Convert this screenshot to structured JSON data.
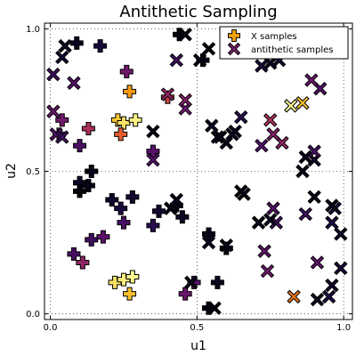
{
  "chart_data": {
    "type": "scatter",
    "title": "Antithetic Sampling",
    "xlabel": "u1",
    "ylabel": "u2",
    "xlim": [
      -0.02,
      1.03
    ],
    "ylim": [
      -0.02,
      1.02
    ],
    "xticks": [
      0.0,
      0.5,
      1.0
    ],
    "xtick_labels": [
      "0.0",
      "0.5",
      "1.0"
    ],
    "yticks": [
      0.0,
      0.5,
      1.0
    ],
    "ytick_labels": [
      "0.0",
      "0.5",
      "1.0"
    ],
    "grid": true,
    "legend_position": "top-right",
    "marker": "cross",
    "colormap": "inferno",
    "series": [
      {
        "name": "X samples",
        "color_rule": "colored by sample index (inferno colormap)",
        "points": [
          {
            "x": 0.17,
            "y": 0.94,
            "c": 0.1
          },
          {
            "x": 0.44,
            "y": 0.98,
            "c": 0.02
          },
          {
            "x": 0.09,
            "y": 0.95,
            "c": 0.05
          },
          {
            "x": 0.52,
            "y": 0.89,
            "c": 0.04
          },
          {
            "x": 0.26,
            "y": 0.85,
            "c": 0.32
          },
          {
            "x": 0.27,
            "y": 0.78,
            "c": 0.78
          },
          {
            "x": 0.4,
            "y": 0.76,
            "c": 0.55
          },
          {
            "x": 0.23,
            "y": 0.68,
            "c": 0.88
          },
          {
            "x": 0.25,
            "y": 0.67,
            "c": 0.93
          },
          {
            "x": 0.29,
            "y": 0.68,
            "c": 0.97
          },
          {
            "x": 0.24,
            "y": 0.63,
            "c": 0.64
          },
          {
            "x": 0.13,
            "y": 0.65,
            "c": 0.46
          },
          {
            "x": 0.04,
            "y": 0.68,
            "c": 0.32
          },
          {
            "x": 0.03,
            "y": 0.63,
            "c": 0.2
          },
          {
            "x": 0.1,
            "y": 0.59,
            "c": 0.23
          },
          {
            "x": 0.35,
            "y": 0.57,
            "c": 0.26
          },
          {
            "x": 0.14,
            "y": 0.5,
            "c": 0.03
          },
          {
            "x": 0.1,
            "y": 0.46,
            "c": 0.06
          },
          {
            "x": 0.1,
            "y": 0.43,
            "c": 0.02
          },
          {
            "x": 0.13,
            "y": 0.45,
            "c": 0.04
          },
          {
            "x": 0.21,
            "y": 0.4,
            "c": 0.07
          },
          {
            "x": 0.28,
            "y": 0.41,
            "c": 0.09
          },
          {
            "x": 0.24,
            "y": 0.37,
            "c": 0.11
          },
          {
            "x": 0.37,
            "y": 0.36,
            "c": 0.08
          },
          {
            "x": 0.25,
            "y": 0.32,
            "c": 0.22
          },
          {
            "x": 0.14,
            "y": 0.26,
            "c": 0.2
          },
          {
            "x": 0.18,
            "y": 0.27,
            "c": 0.26
          },
          {
            "x": 0.08,
            "y": 0.21,
            "c": 0.22
          },
          {
            "x": 0.11,
            "y": 0.18,
            "c": 0.4
          },
          {
            "x": 0.22,
            "y": 0.11,
            "c": 0.93
          },
          {
            "x": 0.25,
            "y": 0.12,
            "c": 0.96
          },
          {
            "x": 0.28,
            "y": 0.13,
            "c": 0.98
          },
          {
            "x": 0.27,
            "y": 0.07,
            "c": 0.86
          },
          {
            "x": 0.43,
            "y": 0.38,
            "c": 0.03
          },
          {
            "x": 0.45,
            "y": 0.34,
            "c": 0.06
          },
          {
            "x": 0.35,
            "y": 0.31,
            "c": 0.15
          },
          {
            "x": 0.49,
            "y": 0.11,
            "c": 0.26
          },
          {
            "x": 0.46,
            "y": 0.07,
            "c": 0.3
          },
          {
            "x": 0.54,
            "y": 0.02,
            "c": 0.02
          },
          {
            "x": 0.54,
            "y": 0.28,
            "c": 0.04
          },
          {
            "x": 0.57,
            "y": 0.11,
            "c": 0.05
          },
          {
            "x": 0.6,
            "y": 0.23,
            "c": 0.03
          }
        ]
      },
      {
        "name": "antithetic samples",
        "color_rule": "colored by sample index (inferno colormap)",
        "points": [
          {
            "x": 0.83,
            "y": 0.06,
            "c": 0.7
          },
          {
            "x": 0.56,
            "y": 0.02,
            "c": 0.02
          },
          {
            "x": 0.91,
            "y": 0.05,
            "c": 0.05
          },
          {
            "x": 0.48,
            "y": 0.11,
            "c": 0.04
          },
          {
            "x": 0.74,
            "y": 0.15,
            "c": 0.32
          },
          {
            "x": 0.73,
            "y": 0.22,
            "c": 0.28
          },
          {
            "x": 0.6,
            "y": 0.24,
            "c": 0.03
          },
          {
            "x": 0.77,
            "y": 0.32,
            "c": 0.22
          },
          {
            "x": 0.75,
            "y": 0.33,
            "c": 0.05
          },
          {
            "x": 0.71,
            "y": 0.32,
            "c": 0.03
          },
          {
            "x": 0.76,
            "y": 0.37,
            "c": 0.24
          },
          {
            "x": 0.87,
            "y": 0.35,
            "c": 0.2
          },
          {
            "x": 0.96,
            "y": 0.32,
            "c": 0.12
          },
          {
            "x": 0.97,
            "y": 0.37,
            "c": 0.1
          },
          {
            "x": 0.9,
            "y": 0.41,
            "c": 0.03
          },
          {
            "x": 0.65,
            "y": 0.43,
            "c": 0.02
          },
          {
            "x": 0.86,
            "y": 0.5,
            "c": 0.03
          },
          {
            "x": 0.9,
            "y": 0.54,
            "c": 0.06
          },
          {
            "x": 0.9,
            "y": 0.57,
            "c": 0.22
          },
          {
            "x": 0.87,
            "y": 0.55,
            "c": 0.04
          },
          {
            "x": 0.79,
            "y": 0.6,
            "c": 0.4
          },
          {
            "x": 0.72,
            "y": 0.59,
            "c": 0.25
          },
          {
            "x": 0.76,
            "y": 0.63,
            "c": 0.37
          },
          {
            "x": 0.63,
            "y": 0.64,
            "c": 0.06
          },
          {
            "x": 0.75,
            "y": 0.68,
            "c": 0.48
          },
          {
            "x": 0.86,
            "y": 0.74,
            "c": 0.86
          },
          {
            "x": 0.82,
            "y": 0.73,
            "c": 0.98
          },
          {
            "x": 0.92,
            "y": 0.79,
            "c": 0.24
          },
          {
            "x": 0.89,
            "y": 0.82,
            "c": 0.3
          },
          {
            "x": 0.78,
            "y": 0.89,
            "c": 0.09
          },
          {
            "x": 0.75,
            "y": 0.88,
            "c": 0.05
          },
          {
            "x": 0.72,
            "y": 0.87,
            "c": 0.1
          },
          {
            "x": 0.73,
            "y": 0.93,
            "c": 0.02
          },
          {
            "x": 0.57,
            "y": 0.62,
            "c": 0.04
          },
          {
            "x": 0.55,
            "y": 0.66,
            "c": 0.06
          },
          {
            "x": 0.65,
            "y": 0.69,
            "c": 0.15
          },
          {
            "x": 0.51,
            "y": 0.89,
            "c": 0.03
          },
          {
            "x": 0.54,
            "y": 0.93,
            "c": 0.02
          },
          {
            "x": 0.46,
            "y": 0.98,
            "c": 0.02
          },
          {
            "x": 0.46,
            "y": 0.72,
            "c": 0.3
          },
          {
            "x": 0.43,
            "y": 0.89,
            "c": 0.2
          },
          {
            "x": 0.4,
            "y": 0.77,
            "c": 0.4
          },
          {
            "x": 0.01,
            "y": 0.84,
            "c": 0.2
          },
          {
            "x": 0.04,
            "y": 0.9,
            "c": 0.08
          },
          {
            "x": 0.05,
            "y": 0.94,
            "c": 0.05
          },
          {
            "x": 0.08,
            "y": 0.81,
            "c": 0.26
          },
          {
            "x": 0.01,
            "y": 0.71,
            "c": 0.3
          },
          {
            "x": 0.02,
            "y": 0.63,
            "c": 0.26
          },
          {
            "x": 0.04,
            "y": 0.62,
            "c": 0.2
          },
          {
            "x": 0.35,
            "y": 0.54,
            "c": 0.24
          },
          {
            "x": 0.41,
            "y": 0.37,
            "c": 0.03
          },
          {
            "x": 0.43,
            "y": 0.4,
            "c": 0.04
          },
          {
            "x": 0.46,
            "y": 0.75,
            "c": 0.36
          },
          {
            "x": 0.6,
            "y": 0.6,
            "c": 0.05
          },
          {
            "x": 0.58,
            "y": 0.62,
            "c": 0.04
          },
          {
            "x": 0.62,
            "y": 0.63,
            "c": 0.05
          },
          {
            "x": 0.66,
            "y": 0.42,
            "c": 0.03
          },
          {
            "x": 0.54,
            "y": 0.25,
            "c": 0.05
          },
          {
            "x": 0.35,
            "y": 0.64,
            "c": 0.02
          },
          {
            "x": 0.99,
            "y": 0.28,
            "c": 0.06
          },
          {
            "x": 0.95,
            "y": 0.06,
            "c": 0.12
          },
          {
            "x": 0.99,
            "y": 0.16,
            "c": 0.1
          },
          {
            "x": 0.96,
            "y": 0.1,
            "c": 0.08
          },
          {
            "x": 0.91,
            "y": 0.18,
            "c": 0.28
          },
          {
            "x": 0.96,
            "y": 0.38,
            "c": 0.04
          }
        ]
      }
    ]
  }
}
